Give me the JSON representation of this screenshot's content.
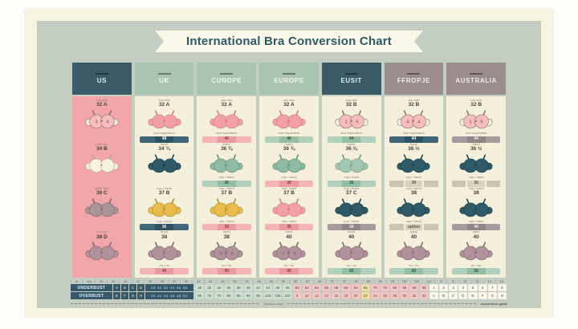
{
  "title": "International Bra Conversion Chart",
  "palette": {
    "page_bg": "#f7f3e2",
    "panel_bg": "#c4cdc2",
    "ribbon_bg": "#fbf7e8",
    "title_color": "#2d5a68",
    "dark_teal": "#35596a",
    "sage": "#a9c4b2",
    "taupe": "#9a8d8c",
    "us_column_pink": "#f2a6a9",
    "column_cream": "#f5f0db"
  },
  "bra_colors": {
    "whitepink": {
      "cup": "#f8bcbd",
      "wing": "#f8f3e1",
      "line": "#8a7566"
    },
    "cream": {
      "cup": "#f7f1dd",
      "wing": "#f7f1dd",
      "line": "#b3a68a"
    },
    "pink": {
      "cup": "#f2a0a6",
      "wing": "#f2a0a6",
      "line": "#c97c84"
    },
    "teal": {
      "cup": "#2f5a68",
      "wing": "#2f5a68",
      "line": "#1e3f4a"
    },
    "sage": {
      "cup": "#8fbaa4",
      "wing": "#8fbaa4",
      "line": "#688e7a"
    },
    "sagelight": {
      "cup": "#a3c8b1",
      "wing": "#a3c8b1",
      "line": "#74997f"
    },
    "yellow": {
      "cup": "#e9bb4e",
      "wing": "#e9bb4e",
      "line": "#b08a2e"
    },
    "mauve": {
      "cup": "#b0929a",
      "wing": "#b0929a",
      "line": "#85666f"
    },
    "mauvegray": {
      "cup": "#ab9599",
      "wing": "#ab9599",
      "line": "#7d6468"
    }
  },
  "banner_styles": {
    "teal": {
      "mid": "#2f5365",
      "side": "#41687a",
      "fg": "#f2f6f5"
    },
    "pink": {
      "mid": "#ec9aa0",
      "side": "#f3b5b7",
      "fg": "#7c4448"
    },
    "sage": {
      "mid": "#93bda5",
      "side": "#b2d0be",
      "fg": "#38503f"
    },
    "taupe": {
      "mid": "#928588",
      "side": "#a89b9d",
      "fg": "#f1ecea"
    },
    "cells": {
      "mid": "#d8d1bd",
      "side": "#cbc4b0",
      "fg": "#5c554a"
    }
  },
  "columns": [
    {
      "name": "US",
      "header_bg": "#3a5a66",
      "header_fg": "#e3ebec",
      "body_bg": "#f2a6a9",
      "rows": [
        {
          "caption": "cup size",
          "size": "32 A",
          "bra": "whitepink",
          "cup_digits": [
            "3",
            "4"
          ]
        },
        {
          "caption": "true size",
          "size": "34 B",
          "bra": "cream"
        },
        {
          "caption": "sister size",
          "size": "36 C",
          "bra": "mauvegray"
        },
        {
          "caption": "full cup",
          "size": "38 D",
          "bra": "mauve"
        }
      ]
    },
    {
      "name": "UK",
      "header_bg": "#a9c4b2",
      "header_fg": "#f6f8f1",
      "body_bg": "#f5f0db",
      "rows": [
        {
          "caption": "cup size",
          "size": "32 A",
          "bra": "pink",
          "banner": {
            "caption": "size equivalent",
            "text": "48",
            "style": "teal"
          }
        },
        {
          "caption": "band",
          "size": "34 ¾",
          "bra": "teal"
        },
        {
          "caption": "cup / band",
          "size": "37 B",
          "bra": "yellow",
          "banner": {
            "caption": "cup / band",
            "text": "36",
            "style": "teal"
          }
        },
        {
          "caption": "band",
          "size": "38",
          "bra": "mauve",
          "banner": {
            "caption": "eu / uk",
            "text": "40",
            "style": "pink"
          }
        }
      ]
    },
    {
      "name": "CUNOPE",
      "header_bg": "#a9c4b2",
      "header_fg": "#f6f8f1",
      "body_bg": "#f5f0db",
      "rows": [
        {
          "caption": "cup size",
          "size": "32 A",
          "bra": "pink",
          "banner": {
            "caption": "size equivalent",
            "text": "46",
            "style": "pink"
          }
        },
        {
          "caption": "band",
          "size": "36 ⅜",
          "bra": "sage",
          "banner": {
            "caption": "cup / band",
            "text": "36",
            "style": "sage"
          }
        },
        {
          "caption": "cup / band",
          "size": "37 B",
          "bra": "yellow",
          "banner": {
            "caption": "cup / band",
            "text": "38",
            "style": "pink"
          }
        },
        {
          "caption": "band",
          "size": "38",
          "bra": "mauve",
          "cup_digits": [
            "3",
            "4"
          ],
          "banner": {
            "caption": "eu / uk",
            "text": "40",
            "style": "pink"
          }
        }
      ]
    },
    {
      "name": "EUROPE",
      "header_bg": "#a9c4b2",
      "header_fg": "#f6f8f1",
      "body_bg": "#f5f0db",
      "rows": [
        {
          "caption": "cup size",
          "size": "32 A",
          "bra": "pink",
          "banner": {
            "caption": "size equivalent",
            "text": "46",
            "style": "sage"
          }
        },
        {
          "caption": "band",
          "size": "36 ⅜",
          "bra": "sage",
          "banner": {
            "caption": "cup / band",
            "text": "38",
            "style": "pink"
          }
        },
        {
          "caption": "cup / band",
          "size": "37 B",
          "bra": "pink",
          "banner": {
            "caption": "cup / band",
            "text": "38",
            "style": "pink"
          }
        },
        {
          "caption": "band",
          "size": "40",
          "bra": "mauve",
          "cup_digits": [
            "1",
            "4"
          ],
          "banner": {
            "caption": "eu / uk",
            "text": "40",
            "style": "pink"
          }
        }
      ]
    },
    {
      "name": "EUSIT",
      "header_bg": "#3a5a66",
      "header_fg": "#e3ebec",
      "body_bg": "#f5f0db",
      "rows": [
        {
          "caption": "cup size",
          "size": "32 B",
          "bra": "whitepink",
          "cup_digits": [
            "1",
            "5"
          ],
          "banner": {
            "caption": "size equivalent",
            "text": "44",
            "style": "sage"
          }
        },
        {
          "caption": "band",
          "size": "36 ⅜",
          "bra": "sagelight",
          "banner": {
            "caption": "cup / band",
            "text": "36",
            "style": "sage"
          }
        },
        {
          "caption": "cup / band",
          "size": "37 C",
          "bra": "teal",
          "banner": {
            "caption": "cup / band",
            "text": "38",
            "style": "taupe"
          }
        },
        {
          "caption": "band",
          "size": "40",
          "bra": "mauve",
          "banner": {
            "caption": "eu / au",
            "text": "42",
            "style": "sage"
          }
        }
      ]
    },
    {
      "name": "FFROPJE",
      "header_bg": "#9a8d8c",
      "header_fg": "#f1ebe8",
      "body_bg": "#f5f0db",
      "rows": [
        {
          "caption": "cup size",
          "size": "32 B",
          "bra": "whitepink",
          "cup_digits": [
            "4",
            "4"
          ],
          "banner": {
            "caption": "size equivalent",
            "text": "44",
            "style": "teal"
          }
        },
        {
          "caption": "band",
          "size": "36 ½",
          "bra": "teal",
          "banner": {
            "caption": "cup / band",
            "text": "36",
            "style": "cells"
          }
        },
        {
          "caption": "cup / band",
          "size": "38",
          "bra": "teal",
          "banner": {
            "caption": "cup / band",
            "text": "option",
            "style": "cells"
          }
        },
        {
          "caption": "band",
          "size": "40",
          "bra": "mauve",
          "banner": {
            "caption": "eu / au",
            "text": "42",
            "style": "sage"
          }
        }
      ]
    },
    {
      "name": "AUSTRALIA",
      "header_bg": "#9a8d8c",
      "header_fg": "#f1ebe8",
      "body_bg": "#f5f0db",
      "rows": [
        {
          "caption": "cup size",
          "size": "32 B",
          "bra": "whitepink",
          "cup_digits": [
            "1",
            "5"
          ],
          "banner": {
            "caption": "size equivalent",
            "text": "44",
            "style": "taupe"
          }
        },
        {
          "caption": "band",
          "size": "36 ½",
          "bra": "teal",
          "banner": {
            "caption": "cup / band",
            "text": "36",
            "style": "cells"
          }
        },
        {
          "caption": "cup / band",
          "size": "38",
          "bra": "teal",
          "banner": {
            "caption": "cup / band",
            "text": "40",
            "style": "taupe"
          }
        },
        {
          "caption": "band",
          "size": "40",
          "bra": "mauve",
          "banner": {
            "caption": "eu / au",
            "text": "42",
            "style": "sage"
          }
        }
      ]
    }
  ],
  "table": {
    "header": [
      "in",
      "cm",
      "28",
      "30",
      "32",
      "34",
      "36",
      "38",
      "40",
      "42",
      "44",
      "46",
      "48",
      "50",
      "52",
      "54",
      "56",
      "58",
      "60",
      "62",
      "65",
      "70",
      "75",
      "80",
      "85",
      "90",
      "95",
      "100",
      "105",
      "110",
      "6",
      "8",
      "10",
      "12",
      "14",
      "16"
    ],
    "rows": [
      {
        "label": "UNDERBUST",
        "smalls": [
          "A",
          "B",
          "C",
          "D"
        ],
        "wide": "28 30 32 34 36 38",
        "groups": [
          {
            "color": "#cfe2d4",
            "values": [
              "30",
              "32",
              "34",
              "36",
              "38",
              "40",
              "42",
              "44",
              "46",
              "48"
            ]
          },
          {
            "color": "#f5c7c6",
            "values": [
              "50",
              "52",
              "54",
              "56",
              "58",
              "60",
              "62"
            ]
          },
          {
            "color": "#f0ddaa",
            "values": [
              "65"
            ]
          },
          {
            "color": "#f5c7c6",
            "values": [
              "70",
              "75",
              "80",
              "85",
              "90",
              "95"
            ]
          },
          {
            "color": "#fbf8ec",
            "values": [
              "1",
              "2",
              "3",
              "4",
              "5",
              "6",
              "7",
              "8"
            ]
          }
        ]
      },
      {
        "label": "OVERBUST",
        "smalls": [
          "E",
          "F",
          "G",
          "H"
        ],
        "wide": "40 42 44 46 48 50",
        "groups": [
          {
            "color": "#cfe2d4",
            "values": [
              "65",
              "70",
              "75",
              "80",
              "85",
              "90",
              "95",
              "100",
              "105",
              "110"
            ]
          },
          {
            "color": "#f5c7c6",
            "values": [
              "8",
              "10",
              "12",
              "14",
              "16",
              "18",
              "20"
            ]
          },
          {
            "color": "#f0ddaa",
            "values": [
              "22"
            ]
          },
          {
            "color": "#f5c7c6",
            "values": [
              "24",
              "26",
              "28",
              "30",
              "32",
              "34"
            ]
          },
          {
            "color": "#fbf8ec",
            "values": [
              "A",
              "B",
              "C",
              "D",
              "E",
              "F",
              "G",
              "H"
            ]
          }
        ]
      }
    ]
  },
  "footer": {
    "center": "bra size chart",
    "right": "conversion guide"
  },
  "chart_data": {
    "type": "table",
    "title": "International Bra Conversion Chart",
    "columns": [
      "US",
      "UK",
      "CUNOPE",
      "EUROPE",
      "EUSIT",
      "FFROPJE",
      "AUSTRALIA"
    ],
    "rows": [
      [
        "32 A",
        "32 A",
        "32 A",
        "32 A",
        "32 B",
        "32 B",
        "32 B"
      ],
      [
        "34 B",
        "34 ¾",
        "36 ⅜",
        "36 ⅜",
        "36 ⅜",
        "36 ½",
        "36 ½"
      ],
      [
        "36 C",
        "37 B",
        "37 B",
        "37 B",
        "37 C",
        "38",
        "38"
      ],
      [
        "38 D",
        "38",
        "38",
        "40",
        "40",
        "40",
        "40"
      ]
    ]
  }
}
